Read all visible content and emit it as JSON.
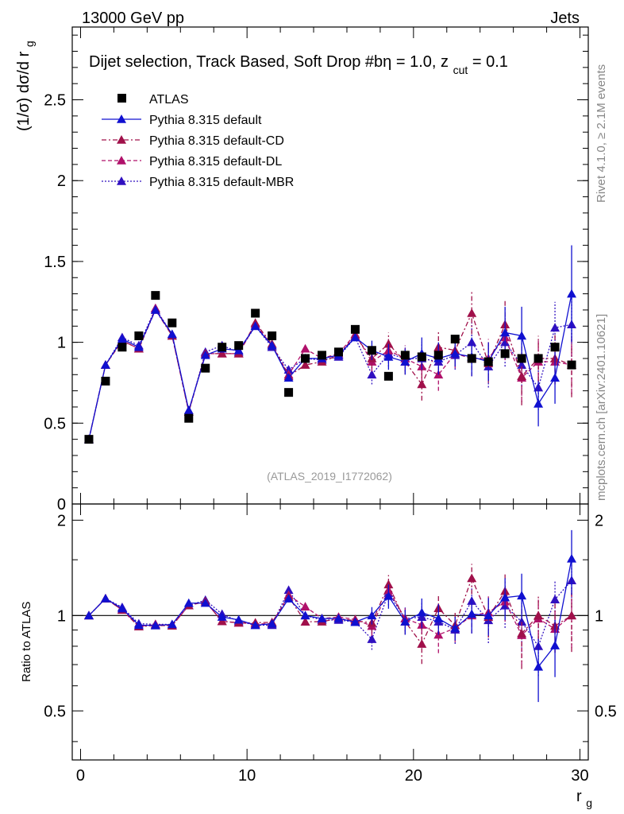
{
  "header": {
    "left": "13000 GeV pp",
    "right": "Jets"
  },
  "side_labels": {
    "rivet": "Rivet 4.1.0, ≥ 2.1M events",
    "mcplots": "mcplots.cern.ch [arXiv:2401.10621]"
  },
  "colors": {
    "atlas": "#000000",
    "default": "#1010d0",
    "cd": "#a0104a",
    "dl": "#b0106a",
    "mbr": "#3010c0"
  },
  "chart_data": [
    {
      "type": "scatter",
      "name": "main",
      "title": "Dijet selection, Track Based, Soft Drop #bη = 1.0, z",
      "title_sub": "cut",
      "title_tail": " = 0.1",
      "watermark": "(ATLAS_2019_I1772062)",
      "xlabel": "r",
      "xlabel_sub": "g",
      "ylabel": "(1/σ) dσ/d r",
      "ylabel_sub": "g",
      "xlim": [
        -0.5,
        30.5
      ],
      "ylim": [
        0,
        2.95
      ],
      "yticks": [
        0,
        0.5,
        1,
        1.5,
        2,
        2.5
      ],
      "ytick_labels": [
        "0",
        "0.5",
        "1",
        "1.5",
        "2",
        "2.5"
      ],
      "x": [
        0.5,
        1.5,
        2.5,
        3.5,
        4.5,
        5.5,
        6.5,
        7.5,
        8.5,
        9.5,
        10.5,
        11.5,
        12.5,
        13.5,
        14.5,
        15.5,
        16.5,
        17.5,
        18.5,
        19.5,
        20.5,
        21.5,
        22.5,
        23.5,
        24.5,
        25.5,
        26.5,
        27.5,
        28.5,
        29.5
      ],
      "series": [
        {
          "name": "ATLAS",
          "key": "atlas",
          "marker": "square",
          "line": "none",
          "values": [
            0.4,
            0.76,
            0.97,
            1.04,
            1.29,
            1.12,
            0.53,
            0.84,
            0.97,
            0.98,
            1.18,
            1.04,
            0.69,
            0.9,
            0.92,
            0.94,
            1.08,
            0.95,
            0.79,
            0.92,
            0.91,
            0.92,
            1.02,
            0.9,
            0.88,
            0.93,
            0.9,
            0.9,
            0.97,
            0.86
          ]
        },
        {
          "name": "Pythia 8.315 default",
          "key": "default",
          "marker": "triangle",
          "line": "solid",
          "values": [
            0.4,
            0.86,
            1.02,
            0.97,
            1.2,
            1.05,
            0.58,
            0.92,
            0.96,
            0.95,
            1.1,
            0.98,
            0.78,
            0.9,
            0.9,
            0.92,
            1.03,
            0.95,
            0.91,
            0.88,
            0.93,
            0.9,
            0.93,
            0.91,
            0.88,
            1.06,
            1.04,
            0.62,
            0.78,
            1.3
          ],
          "errors": [
            0,
            0,
            0,
            0,
            0,
            0,
            0,
            0,
            0,
            0,
            0,
            0,
            0,
            0,
            0,
            0,
            0,
            0.06,
            0.08,
            0.08,
            0.1,
            0.1,
            0.08,
            0.12,
            0.12,
            0.16,
            0.18,
            0.14,
            0.16,
            0.3
          ]
        },
        {
          "name": "Pythia 8.315 default-CD",
          "key": "cd",
          "marker": "triangle",
          "line": "dashdot",
          "values": [
            0.4,
            0.86,
            1.01,
            0.96,
            1.2,
            1.04,
            0.57,
            0.93,
            0.93,
            0.93,
            1.12,
            0.99,
            0.79,
            0.86,
            0.88,
            0.92,
            1.04,
            0.9,
            0.99,
            0.88,
            0.74,
            0.97,
            0.95,
            1.18,
            0.87,
            1.11,
            0.79,
            0.9,
            0.9,
            0.86
          ],
          "errors": [
            0,
            0,
            0,
            0,
            0,
            0,
            0,
            0,
            0,
            0,
            0,
            0,
            0,
            0,
            0,
            0,
            0,
            0.06,
            0.07,
            0.08,
            0.1,
            0.1,
            0.09,
            0.13,
            0.12,
            0.16,
            0.18,
            0.14,
            0.16,
            0.2
          ]
        },
        {
          "name": "Pythia 8.315 default-DL",
          "key": "dl",
          "marker": "triangle",
          "line": "dashed",
          "values": [
            0.4,
            0.86,
            1.01,
            0.96,
            1.21,
            1.04,
            0.57,
            0.93,
            0.93,
            0.93,
            1.11,
            0.98,
            0.8,
            0.96,
            0.9,
            0.93,
            1.05,
            0.88,
            0.95,
            0.9,
            0.85,
            0.8,
            0.93,
            0.9,
            0.9,
            1.03,
            0.78,
            0.88,
            0.88,
            0.86
          ],
          "errors": [
            0,
            0,
            0,
            0,
            0,
            0,
            0,
            0,
            0,
            0,
            0,
            0,
            0,
            0,
            0,
            0,
            0,
            0.06,
            0.07,
            0.08,
            0.09,
            0.1,
            0.09,
            0.11,
            0.12,
            0.14,
            0.15,
            0.13,
            0.14,
            0.18
          ]
        },
        {
          "name": "Pythia 8.315 default-MBR",
          "key": "mbr",
          "marker": "triangle",
          "line": "dotted",
          "values": [
            0.4,
            0.86,
            1.03,
            0.98,
            1.21,
            1.05,
            0.57,
            0.94,
            0.98,
            0.94,
            1.1,
            0.97,
            0.83,
            0.9,
            0.89,
            0.91,
            1.03,
            0.8,
            0.93,
            0.9,
            0.9,
            0.88,
            0.92,
            1.0,
            0.85,
            1.0,
            0.86,
            0.72,
            1.09,
            1.11
          ],
          "errors": [
            0,
            0,
            0,
            0,
            0,
            0,
            0,
            0,
            0,
            0,
            0,
            0,
            0,
            0,
            0,
            0,
            0,
            0.06,
            0.08,
            0.08,
            0.1,
            0.1,
            0.09,
            0.12,
            0.13,
            0.15,
            0.17,
            0.14,
            0.16,
            0.2
          ]
        }
      ],
      "legend_position": "top-left"
    },
    {
      "type": "scatter",
      "name": "ratio",
      "ylabel": "Ratio to ATLAS",
      "xlabel": "r",
      "xlabel_sub": "g",
      "xlim": [
        -0.5,
        30.5
      ],
      "ylim": [
        0.35,
        2.25
      ],
      "yticks": [
        0.5,
        1,
        2
      ],
      "ytick_labels": [
        "0.5",
        "1",
        "2"
      ],
      "xticks": [
        0,
        10,
        20,
        30
      ],
      "xtick_labels": [
        "0",
        "10",
        "20",
        "30"
      ],
      "reference_line": 1
    }
  ]
}
